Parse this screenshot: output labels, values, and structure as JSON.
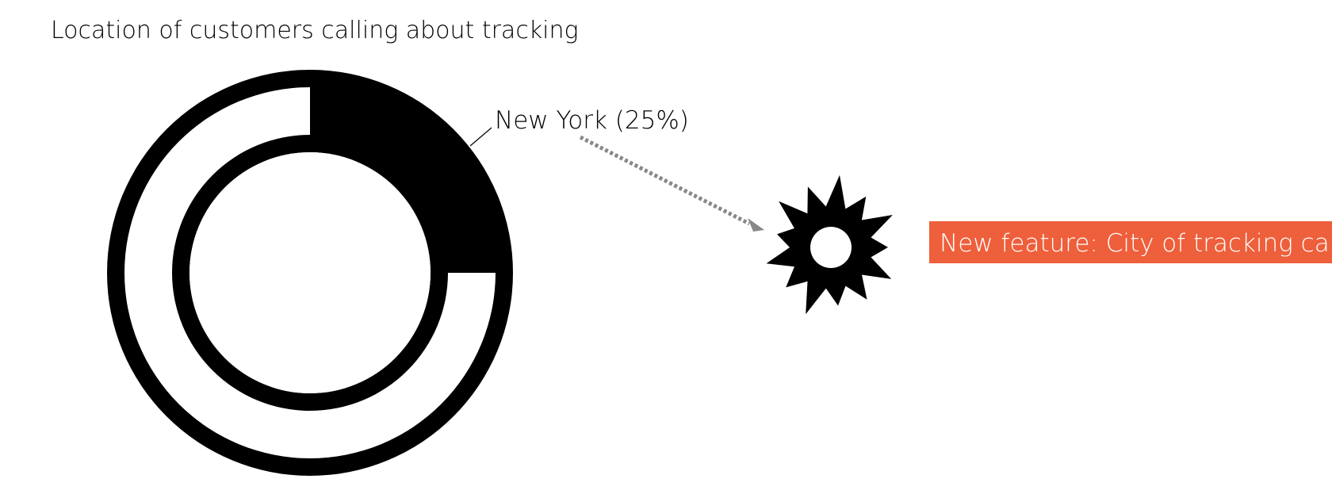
{
  "chart_data": {
    "type": "pie",
    "style": "donut",
    "title": "Location of customers calling about tracking",
    "slices": [
      {
        "label": "New York (25%)",
        "value": 25,
        "highlighted": true
      },
      {
        "label": "",
        "value": 75,
        "highlighted": false
      }
    ],
    "callout": {
      "text": "New feature: City of tracking call"
    }
  },
  "colors": {
    "highlight": "#000000",
    "ring_outline": "#000000",
    "callout_box": "#ee5f3b",
    "callout_text": "#ffffff",
    "arrow": "#888888",
    "background": "#ffffff"
  },
  "icons": {
    "callout_marker": "starburst-icon"
  }
}
